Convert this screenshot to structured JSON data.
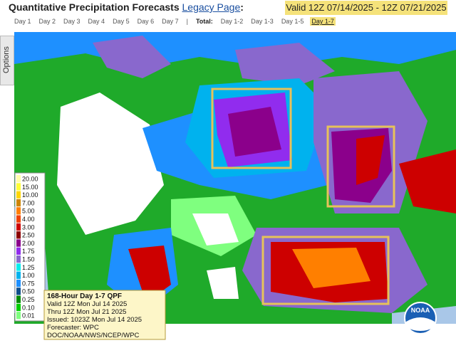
{
  "header": {
    "title": "Quantitative Precipitation Forecasts",
    "link": "Legacy Page",
    "colon": ":",
    "valid": "Valid 12Z 07/14/2025 - 12Z 07/21/2025"
  },
  "tabs": {
    "days": [
      "Day 1",
      "Day 2",
      "Day 3",
      "Day 4",
      "Day 5",
      "Day 6",
      "Day 7"
    ],
    "separator": "|",
    "total_label": "Total:",
    "totals": [
      "Day 1-2",
      "Day 1-3",
      "Day 1-5",
      "Day 1-7"
    ],
    "selected": "Day 1-7"
  },
  "options": "Options",
  "legend": [
    {
      "label": "20.00",
      "color": "#ffffa8"
    },
    {
      "label": "15.00",
      "color": "#ffff33"
    },
    {
      "label": "10.00",
      "color": "#ffd700"
    },
    {
      "label": "7.00",
      "color": "#cd8500"
    },
    {
      "label": "5.00",
      "color": "#ff7f00"
    },
    {
      "label": "4.00",
      "color": "#ee4000"
    },
    {
      "label": "3.00",
      "color": "#cd0000"
    },
    {
      "label": "2.50",
      "color": "#8b0000"
    },
    {
      "label": "2.00",
      "color": "#8b008b"
    },
    {
      "label": "1.75",
      "color": "#912cee"
    },
    {
      "label": "1.50",
      "color": "#8968cd"
    },
    {
      "label": "1.25",
      "color": "#00eeee"
    },
    {
      "label": "1.00",
      "color": "#00b2ee"
    },
    {
      "label": "0.75",
      "color": "#1e90ff"
    },
    {
      "label": "0.50",
      "color": "#104e8b"
    },
    {
      "label": "0.25",
      "color": "#008b00"
    },
    {
      "label": "0.10",
      "color": "#00cd00"
    },
    {
      "label": "0.01",
      "color": "#7fff7f"
    }
  ],
  "info": [
    "168-Hour Day 1-7 QPF",
    "Valid 12Z Mon Jul 14 2025",
    "Thru 12Z Mon Jul 21 2025",
    "Issued: 1023Z Mon Jul 14 2025",
    "Forecaster: WPC",
    "DOC/NOAA/NWS/NCEP/WPC"
  ],
  "logo": "NOAA"
}
